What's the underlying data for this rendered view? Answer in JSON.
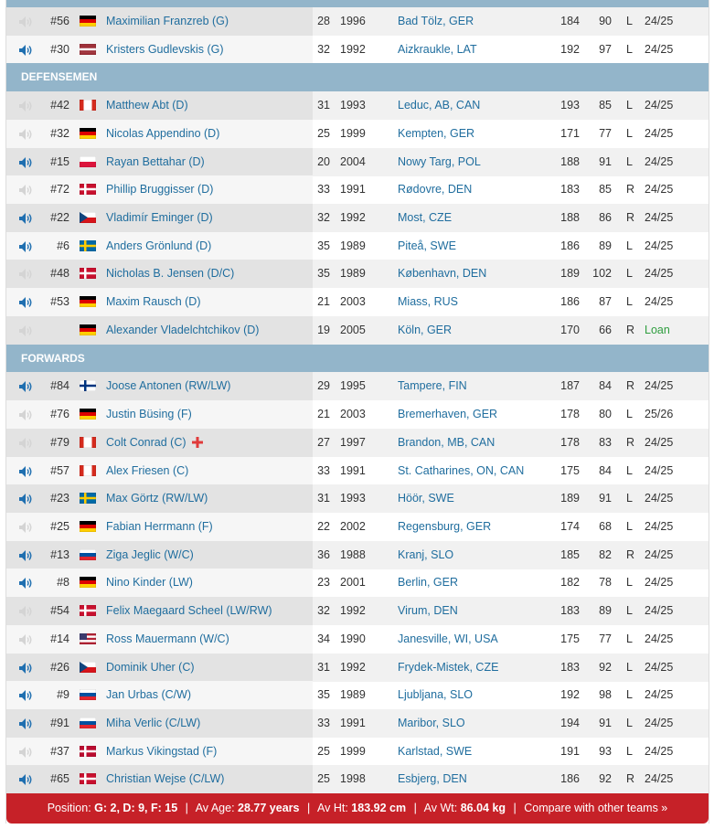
{
  "sections": [
    {
      "rows": [
        {
          "audio": false,
          "number": "#56",
          "flag": {
            "h": [
              "#000000",
              "#dd0000",
              "#ffce00"
            ]
          },
          "name": "Maximilian Franzreb (G)",
          "age": 28,
          "born": 1996,
          "birthplace": "Bad Tölz, GER",
          "height": 184,
          "weight": 90,
          "shoots": "L",
          "contract": "24/25"
        },
        {
          "audio": true,
          "number": "#30",
          "flag": {
            "h": [
              "#9e3039",
              "#9e3039",
              "#ffffff",
              "#9e3039",
              "#9e3039"
            ]
          },
          "name": "Kristers Gudlevskis (G)",
          "age": 32,
          "born": 1992,
          "birthplace": "Aizkraukle, LAT",
          "height": 192,
          "weight": 97,
          "shoots": "L",
          "contract": "24/25"
        }
      ]
    },
    {
      "title": "DEFENSEMEN",
      "rows": [
        {
          "audio": false,
          "number": "#42",
          "flag": {
            "v": [
              "#d52b1e",
              "#ffffff",
              "#ffffff",
              "#d52b1e"
            ]
          },
          "name": "Matthew Abt (D)",
          "age": 31,
          "born": 1993,
          "birthplace": "Leduc, AB, CAN",
          "height": 193,
          "weight": 85,
          "shoots": "L",
          "contract": "24/25"
        },
        {
          "audio": false,
          "number": "#32",
          "flag": {
            "h": [
              "#000000",
              "#dd0000",
              "#ffce00"
            ]
          },
          "name": "Nicolas Appendino (D)",
          "age": 25,
          "born": 1999,
          "birthplace": "Kempten, GER",
          "height": 171,
          "weight": 77,
          "shoots": "L",
          "contract": "24/25"
        },
        {
          "audio": true,
          "number": "#15",
          "flag": {
            "h": [
              "#ffffff",
              "#dc143c"
            ]
          },
          "name": "Rayan Bettahar (D)",
          "age": 20,
          "born": 2004,
          "birthplace": "Nowy Targ, POL",
          "height": 188,
          "weight": 91,
          "shoots": "L",
          "contract": "24/25"
        },
        {
          "audio": false,
          "number": "#72",
          "flag": {
            "field": "#c8102e",
            "cross": "#ffffff"
          },
          "name": "Phillip Bruggisser (D)",
          "age": 33,
          "born": 1991,
          "birthplace": "Rødovre, DEN",
          "height": 183,
          "weight": 85,
          "shoots": "R",
          "contract": "24/25"
        },
        {
          "audio": true,
          "number": "#22",
          "flag": {
            "h": [
              "#ffffff",
              "#d7141a"
            ],
            "tri": "#11457e"
          },
          "name": "Vladimír Eminger (D)",
          "age": 32,
          "born": 1992,
          "birthplace": "Most, CZE",
          "height": 188,
          "weight": 86,
          "shoots": "R",
          "contract": "24/25"
        },
        {
          "audio": true,
          "number": "#6",
          "flag": {
            "field": "#006aa7",
            "cross": "#fecc00"
          },
          "name": "Anders Grönlund (D)",
          "age": 35,
          "born": 1989,
          "birthplace": "Piteå, SWE",
          "height": 186,
          "weight": 89,
          "shoots": "L",
          "contract": "24/25"
        },
        {
          "audio": false,
          "number": "#48",
          "flag": {
            "field": "#c8102e",
            "cross": "#ffffff"
          },
          "name": "Nicholas B. Jensen (D/C)",
          "age": 35,
          "born": 1989,
          "birthplace": "København, DEN",
          "height": 189,
          "weight": 102,
          "shoots": "L",
          "contract": "24/25"
        },
        {
          "audio": true,
          "number": "#53",
          "flag": {
            "h": [
              "#000000",
              "#dd0000",
              "#ffce00"
            ]
          },
          "name": "Maxim Rausch (D)",
          "age": 21,
          "born": 2003,
          "birthplace": "Miass, RUS",
          "height": 186,
          "weight": 87,
          "shoots": "L",
          "contract": "24/25"
        },
        {
          "audio": false,
          "flag": {
            "h": [
              "#000000",
              "#dd0000",
              "#ffce00"
            ]
          },
          "name": "Alexander Vladelchtchikov (D)",
          "age": 19,
          "born": 2005,
          "birthplace": "Köln, GER",
          "height": 170,
          "weight": 66,
          "shoots": "R",
          "contract": "Loan",
          "contract_color": "#2f9e3f"
        }
      ]
    },
    {
      "title": "FORWARDS",
      "rows": [
        {
          "audio": true,
          "number": "#84",
          "flag": {
            "field": "#ffffff",
            "cross": "#003580"
          },
          "name": "Joose Antonen (RW/LW)",
          "age": 29,
          "born": 1995,
          "birthplace": "Tampere, FIN",
          "height": 187,
          "weight": 84,
          "shoots": "R",
          "contract": "24/25"
        },
        {
          "audio": false,
          "number": "#76",
          "flag": {
            "h": [
              "#000000",
              "#dd0000",
              "#ffce00"
            ]
          },
          "name": "Justin Büsing (F)",
          "age": 21,
          "born": 2003,
          "birthplace": "Bremerhaven, GER",
          "height": 178,
          "weight": 80,
          "shoots": "L",
          "contract": "25/26"
        },
        {
          "audio": false,
          "number": "#79",
          "flag": {
            "v": [
              "#d52b1e",
              "#ffffff",
              "#ffffff",
              "#d52b1e"
            ]
          },
          "name": "Colt Conrad (C)",
          "captain": true,
          "age": 27,
          "born": 1997,
          "birthplace": "Brandon, MB, CAN",
          "height": 178,
          "weight": 83,
          "shoots": "R",
          "contract": "24/25"
        },
        {
          "audio": true,
          "number": "#57",
          "flag": {
            "v": [
              "#d52b1e",
              "#ffffff",
              "#ffffff",
              "#d52b1e"
            ]
          },
          "name": "Alex Friesen (C)",
          "age": 33,
          "born": 1991,
          "birthplace": "St. Catharines, ON, CAN",
          "height": 175,
          "weight": 84,
          "shoots": "L",
          "contract": "24/25"
        },
        {
          "audio": true,
          "number": "#23",
          "flag": {
            "field": "#006aa7",
            "cross": "#fecc00"
          },
          "name": "Max Görtz (RW/LW)",
          "age": 31,
          "born": 1993,
          "birthplace": "Höör, SWE",
          "height": 189,
          "weight": 91,
          "shoots": "L",
          "contract": "24/25"
        },
        {
          "audio": false,
          "number": "#25",
          "flag": {
            "h": [
              "#000000",
              "#dd0000",
              "#ffce00"
            ]
          },
          "name": "Fabian Herrmann (F)",
          "age": 22,
          "born": 2002,
          "birthplace": "Regensburg, GER",
          "height": 174,
          "weight": 68,
          "shoots": "L",
          "contract": "24/25"
        },
        {
          "audio": true,
          "number": "#13",
          "flag": {
            "h": [
              "#ffffff",
              "#0051a0",
              "#e4262e"
            ]
          },
          "name": "Ziga Jeglic (W/C)",
          "age": 36,
          "born": 1988,
          "birthplace": "Kranj, SLO",
          "height": 185,
          "weight": 82,
          "shoots": "R",
          "contract": "24/25"
        },
        {
          "audio": true,
          "number": "#8",
          "flag": {
            "h": [
              "#000000",
              "#dd0000",
              "#ffce00"
            ]
          },
          "name": "Nino Kinder (LW)",
          "age": 23,
          "born": 2001,
          "birthplace": "Berlin, GER",
          "height": 182,
          "weight": 78,
          "shoots": "L",
          "contract": "24/25"
        },
        {
          "audio": false,
          "number": "#54",
          "flag": {
            "field": "#c8102e",
            "cross": "#ffffff"
          },
          "name": "Felix Maegaard Scheel (LW/RW)",
          "age": 32,
          "born": 1992,
          "birthplace": "Virum, DEN",
          "height": 183,
          "weight": 89,
          "shoots": "L",
          "contract": "24/25"
        },
        {
          "audio": false,
          "number": "#14",
          "flag": {
            "h": [
              "#b22234",
              "#ffffff",
              "#b22234",
              "#ffffff",
              "#b22234"
            ],
            "canton": "#3c3b6e"
          },
          "name": "Ross Mauermann (W/C)",
          "age": 34,
          "born": 1990,
          "birthplace": "Janesville, WI, USA",
          "height": 175,
          "weight": 77,
          "shoots": "L",
          "contract": "24/25"
        },
        {
          "audio": true,
          "number": "#26",
          "flag": {
            "h": [
              "#ffffff",
              "#d7141a"
            ],
            "tri": "#11457e"
          },
          "name": "Dominik Uher (C)",
          "age": 31,
          "born": 1992,
          "birthplace": "Frydek-Mistek, CZE",
          "height": 183,
          "weight": 92,
          "shoots": "L",
          "contract": "24/25"
        },
        {
          "audio": true,
          "number": "#9",
          "flag": {
            "h": [
              "#ffffff",
              "#0051a0",
              "#e4262e"
            ]
          },
          "name": "Jan Urbas (C/W)",
          "age": 35,
          "born": 1989,
          "birthplace": "Ljubljana, SLO",
          "height": 192,
          "weight": 98,
          "shoots": "L",
          "contract": "24/25"
        },
        {
          "audio": true,
          "number": "#91",
          "flag": {
            "h": [
              "#ffffff",
              "#0051a0",
              "#e4262e"
            ]
          },
          "name": "Miha Verlic (C/LW)",
          "age": 33,
          "born": 1991,
          "birthplace": "Maribor, SLO",
          "height": 194,
          "weight": 91,
          "shoots": "L",
          "contract": "24/25"
        },
        {
          "audio": false,
          "number": "#37",
          "flag": {
            "field": "#ba0c2f",
            "cross": "#ffffff"
          },
          "name": "Markus Vikingstad (F)",
          "age": 25,
          "born": 1999,
          "birthplace": "Karlstad, SWE",
          "height": 191,
          "weight": 93,
          "shoots": "L",
          "contract": "24/25"
        },
        {
          "audio": true,
          "number": "#65",
          "flag": {
            "field": "#c8102e",
            "cross": "#ffffff"
          },
          "name": "Christian Wejse (C/LW)",
          "age": 25,
          "born": 1998,
          "birthplace": "Esbjerg, DEN",
          "height": 186,
          "weight": 92,
          "shoots": "R",
          "contract": "24/25"
        }
      ]
    }
  ],
  "footer": {
    "position_label": "Position:",
    "position": "G: 2, D: 9, F: 15",
    "age_label": "Av Age:",
    "age": "28.77 years",
    "height_label": "Av Ht:",
    "height": "183.92 cm",
    "weight_label": "Av Wt:",
    "weight": "86.04 kg",
    "compare": "Compare with other teams »"
  }
}
